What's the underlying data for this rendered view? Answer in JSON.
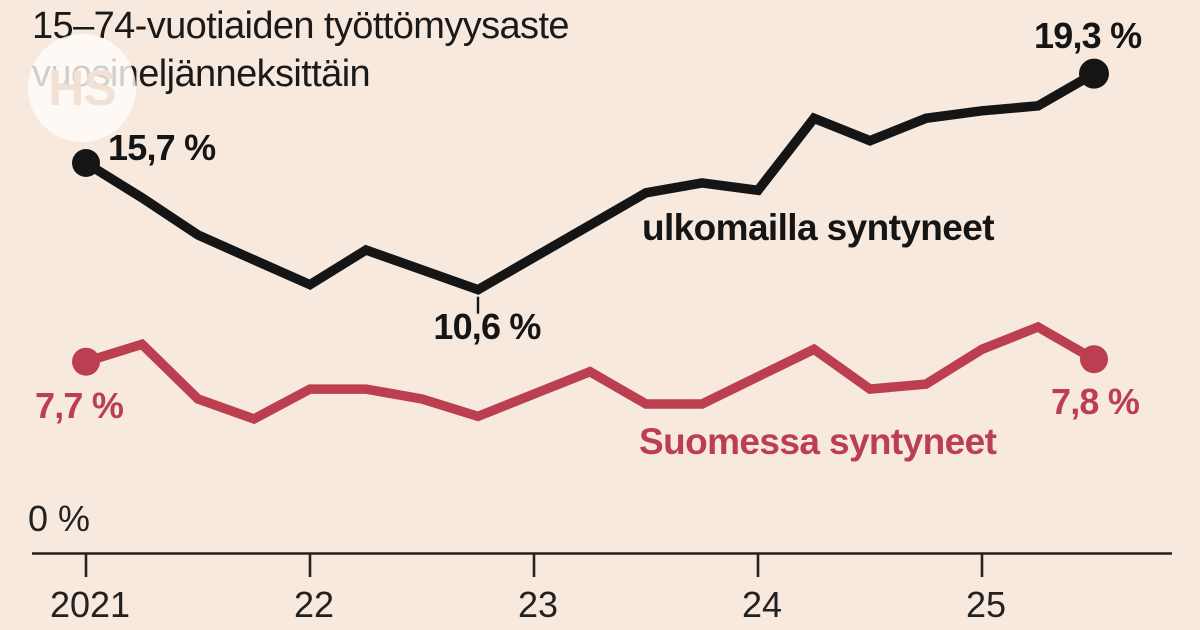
{
  "title": {
    "line1": "15–74-vuotiaiden työttömyysaste",
    "line2": "vuosineljänneksittäin"
  },
  "watermark": {
    "text": "HS"
  },
  "colors": {
    "background": "#f7e9de",
    "black_line": "#151515",
    "red_line": "#bb3e51",
    "axis": "#222222"
  },
  "chart_data": {
    "type": "line",
    "title": "15–74-vuotiaiden työttömyysaste vuosineljänneksittäin",
    "categories": [
      "2021 Q1",
      "2021 Q2",
      "2021 Q3",
      "2021 Q4",
      "2022 Q1",
      "2022 Q2",
      "2022 Q3",
      "2022 Q4",
      "2023 Q1",
      "2023 Q2",
      "2023 Q3",
      "2023 Q4",
      "2024 Q1",
      "2024 Q2",
      "2024 Q3",
      "2024 Q4",
      "2025 Q1",
      "2025 Q2",
      "2025 Q3"
    ],
    "series": [
      {
        "name": "ulkomailla syntyneet",
        "color": "#151515",
        "values": [
          15.7,
          14.3,
          12.8,
          11.8,
          10.8,
          12.2,
          11.4,
          10.6,
          11.9,
          13.2,
          14.5,
          14.9,
          14.6,
          17.5,
          16.6,
          17.5,
          17.8,
          18.0,
          19.3
        ]
      },
      {
        "name": "Suomessa syntyneet",
        "color": "#bb3e51",
        "values": [
          7.7,
          8.4,
          6.2,
          5.4,
          6.6,
          6.6,
          6.2,
          5.5,
          6.4,
          7.3,
          6.0,
          6.0,
          7.1,
          8.2,
          6.6,
          6.8,
          8.2,
          9.1,
          7.8
        ]
      }
    ],
    "x_ticks": [
      "2021",
      "22",
      "23",
      "24",
      "25"
    ],
    "ylabel": "0 %",
    "ylim": [
      0,
      22
    ],
    "grid": false,
    "legend": "inline-labels",
    "annotations": {
      "black_start": "15,7 %",
      "black_min": "10,6 %",
      "black_min_index": 7,
      "black_end": "19,3 %",
      "red_start": "7,7 %",
      "red_end": "7,8 %"
    }
  }
}
